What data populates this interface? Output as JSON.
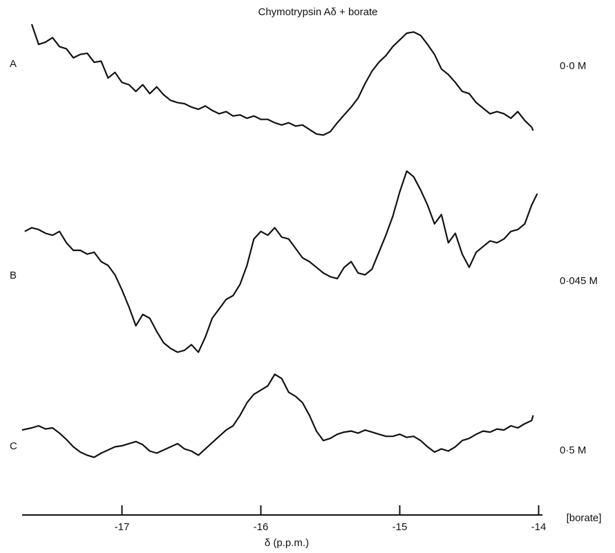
{
  "chart_data": {
    "type": "line",
    "title": "Chymotrypsin Aδ + borate",
    "xlabel": "δ (p.p.m.)",
    "xlim": [
      -17.72,
      -13.98
    ],
    "x_reversed_note": "",
    "xticks": [
      -17,
      -16,
      -15,
      -14
    ],
    "xtick_labels": [
      "-17",
      "-16",
      "-15",
      "-14"
    ],
    "concentration_header": "[borate]",
    "grid": false,
    "series": [
      {
        "name": "A",
        "concentration": "0·0 M",
        "x": [
          -17.65,
          -17.6,
          -17.55,
          -17.5,
          -17.45,
          -17.4,
          -17.35,
          -17.3,
          -17.25,
          -17.2,
          -17.15,
          -17.1,
          -17.05,
          -17.0,
          -16.95,
          -16.9,
          -16.85,
          -16.8,
          -16.75,
          -16.7,
          -16.65,
          -16.6,
          -16.55,
          -16.5,
          -16.45,
          -16.4,
          -16.35,
          -16.3,
          -16.25,
          -16.2,
          -16.15,
          -16.1,
          -16.05,
          -16.0,
          -15.95,
          -15.9,
          -15.85,
          -15.8,
          -15.75,
          -15.7,
          -15.65,
          -15.6,
          -15.55,
          -15.5,
          -15.45,
          -15.4,
          -15.35,
          -15.3,
          -15.25,
          -15.2,
          -15.15,
          -15.1,
          -15.05,
          -15.0,
          -14.95,
          -14.9,
          -14.85,
          -14.8,
          -14.75,
          -14.7,
          -14.65,
          -14.6,
          -14.55,
          -14.5,
          -14.45,
          -14.4,
          -14.35,
          -14.3,
          -14.25,
          -14.2,
          -14.15,
          -14.1,
          -14.05,
          -14.04
        ],
        "y": [
          1.0,
          0.82,
          0.84,
          0.88,
          0.8,
          0.78,
          0.7,
          0.73,
          0.74,
          0.66,
          0.67,
          0.52,
          0.57,
          0.48,
          0.46,
          0.4,
          0.46,
          0.38,
          0.44,
          0.37,
          0.32,
          0.3,
          0.29,
          0.26,
          0.24,
          0.27,
          0.23,
          0.2,
          0.22,
          0.18,
          0.19,
          0.16,
          0.18,
          0.15,
          0.15,
          0.12,
          0.1,
          0.12,
          0.09,
          0.1,
          0.06,
          0.02,
          0.01,
          0.04,
          0.12,
          0.19,
          0.26,
          0.34,
          0.47,
          0.58,
          0.66,
          0.72,
          0.8,
          0.86,
          0.92,
          0.93,
          0.9,
          0.82,
          0.73,
          0.6,
          0.55,
          0.48,
          0.4,
          0.38,
          0.3,
          0.25,
          0.2,
          0.22,
          0.2,
          0.16,
          0.22,
          0.14,
          0.08,
          0.05
        ]
      },
      {
        "name": "B",
        "concentration": "0·045 M",
        "x": [
          -17.7,
          -17.65,
          -17.6,
          -17.55,
          -17.5,
          -17.45,
          -17.4,
          -17.35,
          -17.3,
          -17.25,
          -17.2,
          -17.15,
          -17.1,
          -17.05,
          -17.0,
          -16.95,
          -16.9,
          -16.85,
          -16.8,
          -16.75,
          -16.7,
          -16.65,
          -16.6,
          -16.55,
          -16.5,
          -16.45,
          -16.4,
          -16.35,
          -16.3,
          -16.25,
          -16.2,
          -16.15,
          -16.1,
          -16.05,
          -16.0,
          -15.95,
          -15.9,
          -15.85,
          -15.8,
          -15.75,
          -15.7,
          -15.65,
          -15.6,
          -15.55,
          -15.5,
          -15.45,
          -15.4,
          -15.35,
          -15.3,
          -15.25,
          -15.2,
          -15.15,
          -15.1,
          -15.05,
          -15.0,
          -14.95,
          -14.9,
          -14.85,
          -14.8,
          -14.75,
          -14.7,
          -14.65,
          -14.6,
          -14.55,
          -14.5,
          -14.45,
          -14.4,
          -14.35,
          -14.3,
          -14.25,
          -14.2,
          -14.15,
          -14.1,
          -14.05,
          -14.01
        ],
        "y": [
          0.66,
          0.68,
          0.67,
          0.65,
          0.64,
          0.66,
          0.6,
          0.56,
          0.56,
          0.54,
          0.55,
          0.5,
          0.48,
          0.43,
          0.35,
          0.26,
          0.16,
          0.22,
          0.2,
          0.13,
          0.07,
          0.04,
          0.02,
          0.03,
          0.06,
          0.02,
          0.1,
          0.2,
          0.25,
          0.3,
          0.32,
          0.38,
          0.48,
          0.62,
          0.66,
          0.64,
          0.68,
          0.63,
          0.62,
          0.57,
          0.52,
          0.5,
          0.47,
          0.44,
          0.42,
          0.41,
          0.47,
          0.5,
          0.44,
          0.43,
          0.46,
          0.55,
          0.64,
          0.74,
          0.87,
          0.98,
          0.95,
          0.88,
          0.8,
          0.7,
          0.75,
          0.6,
          0.65,
          0.54,
          0.47,
          0.55,
          0.58,
          0.61,
          0.6,
          0.62,
          0.66,
          0.67,
          0.7,
          0.8,
          0.86
        ]
      },
      {
        "name": "C",
        "concentration": "0·5 M",
        "x": [
          -17.72,
          -17.65,
          -17.6,
          -17.55,
          -17.5,
          -17.45,
          -17.4,
          -17.35,
          -17.3,
          -17.25,
          -17.2,
          -17.15,
          -17.1,
          -17.05,
          -17.0,
          -16.95,
          -16.9,
          -16.85,
          -16.8,
          -16.75,
          -16.7,
          -16.65,
          -16.6,
          -16.55,
          -16.5,
          -16.45,
          -16.4,
          -16.35,
          -16.3,
          -16.25,
          -16.2,
          -16.15,
          -16.1,
          -16.05,
          -16.0,
          -15.95,
          -15.9,
          -15.85,
          -15.8,
          -15.75,
          -15.7,
          -15.65,
          -15.6,
          -15.55,
          -15.5,
          -15.45,
          -15.4,
          -15.35,
          -15.3,
          -15.25,
          -15.2,
          -15.15,
          -15.1,
          -15.05,
          -15.0,
          -14.95,
          -14.9,
          -14.85,
          -14.8,
          -14.75,
          -14.7,
          -14.65,
          -14.6,
          -14.55,
          -14.5,
          -14.45,
          -14.4,
          -14.35,
          -14.3,
          -14.25,
          -14.2,
          -14.15,
          -14.1,
          -14.05,
          -14.04
        ],
        "y": [
          0.46,
          0.48,
          0.5,
          0.47,
          0.48,
          0.43,
          0.37,
          0.3,
          0.25,
          0.22,
          0.2,
          0.24,
          0.27,
          0.3,
          0.31,
          0.33,
          0.35,
          0.32,
          0.26,
          0.24,
          0.27,
          0.3,
          0.33,
          0.28,
          0.26,
          0.22,
          0.28,
          0.34,
          0.4,
          0.46,
          0.5,
          0.6,
          0.72,
          0.8,
          0.84,
          0.88,
          0.99,
          0.95,
          0.82,
          0.78,
          0.72,
          0.6,
          0.45,
          0.36,
          0.38,
          0.42,
          0.44,
          0.45,
          0.43,
          0.46,
          0.44,
          0.42,
          0.4,
          0.4,
          0.42,
          0.39,
          0.4,
          0.36,
          0.3,
          0.25,
          0.28,
          0.26,
          0.3,
          0.36,
          0.38,
          0.42,
          0.45,
          0.44,
          0.47,
          0.46,
          0.5,
          0.48,
          0.52,
          0.55,
          0.6
        ]
      }
    ]
  }
}
